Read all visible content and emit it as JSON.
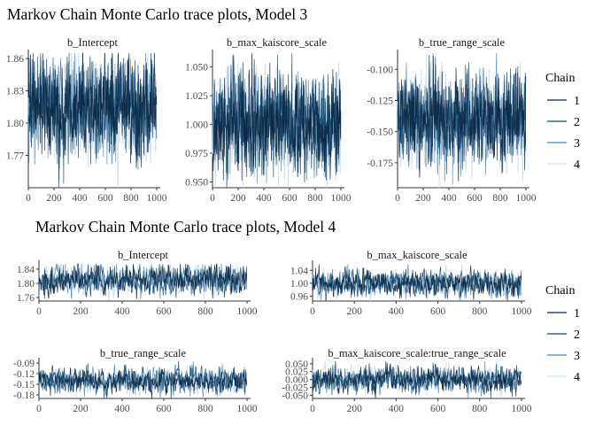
{
  "figures": [
    {
      "title": "Markov Chain Monte Carlo trace plots, Model 3",
      "legend": {
        "title": "Chain",
        "entries": [
          "1",
          "2",
          "3",
          "4"
        ],
        "colors": [
          "#0b2540",
          "#0f4a72",
          "#4f86b4",
          "#cfe0ee"
        ],
        "position": "right"
      }
    },
    {
      "title": "Markov Chain Monte Carlo trace plots, Model 4",
      "legend": {
        "title": "Chain",
        "entries": [
          "1",
          "2",
          "3",
          "4"
        ],
        "colors": [
          "#0b2540",
          "#0f4a72",
          "#4f86b4",
          "#cfe0ee"
        ],
        "position": "right"
      }
    }
  ],
  "chart_data": [
    {
      "type": "line",
      "figure": 0,
      "panel": "b_Intercept",
      "x_range": [
        1,
        1000
      ],
      "xlim": [
        0,
        1000
      ],
      "ylim": [
        1.74,
        1.865
      ],
      "xticks": [
        0,
        200,
        400,
        600,
        800,
        1000
      ],
      "yticks": [
        1.77,
        1.8,
        1.83,
        1.86
      ],
      "ytick_labels": [
        "1.77",
        "1.80",
        "1.83",
        "1.86"
      ],
      "center": 1.815,
      "spread": 0.022,
      "series": [
        {
          "name": "1"
        },
        {
          "name": "2"
        },
        {
          "name": "3"
        },
        {
          "name": "4"
        }
      ]
    },
    {
      "type": "line",
      "figure": 0,
      "panel": "b_max_kaiscore_scale",
      "x_range": [
        1,
        1000
      ],
      "xlim": [
        0,
        1000
      ],
      "ylim": [
        0.945,
        1.062
      ],
      "xticks": [
        0,
        200,
        400,
        600,
        800,
        1000
      ],
      "yticks": [
        0.95,
        0.975,
        1.0,
        1.025,
        1.05
      ],
      "ytick_labels": [
        "0.950",
        "0.975",
        "1.000",
        "1.025",
        "1.050"
      ],
      "center": 1.0,
      "spread": 0.02,
      "series": [
        {
          "name": "1"
        },
        {
          "name": "2"
        },
        {
          "name": "3"
        },
        {
          "name": "4"
        }
      ]
    },
    {
      "type": "line",
      "figure": 0,
      "panel": "b_true_range_scale",
      "x_range": [
        1,
        1000
      ],
      "xlim": [
        0,
        1000
      ],
      "ylim": [
        -0.195,
        -0.087
      ],
      "xticks": [
        0,
        200,
        400,
        600,
        800,
        1000
      ],
      "yticks": [
        -0.175,
        -0.15,
        -0.125,
        -0.1
      ],
      "ytick_labels": [
        "-0.175",
        "-0.150",
        "-0.125",
        "-0.100"
      ],
      "center": -0.14,
      "spread": 0.018,
      "series": [
        {
          "name": "1"
        },
        {
          "name": "2"
        },
        {
          "name": "3"
        },
        {
          "name": "4"
        }
      ]
    },
    {
      "type": "line",
      "figure": 1,
      "panel": "b_Intercept",
      "x_range": [
        1,
        1000
      ],
      "xlim": [
        0,
        1000
      ],
      "ylim": [
        1.75,
        1.855
      ],
      "xticks": [
        0,
        200,
        400,
        600,
        800,
        1000
      ],
      "yticks": [
        1.76,
        1.8,
        1.84
      ],
      "ytick_labels": [
        "1.76",
        "1.80",
        "1.84"
      ],
      "center": 1.81,
      "spread": 0.02,
      "series": [
        {
          "name": "1"
        },
        {
          "name": "2"
        },
        {
          "name": "3"
        },
        {
          "name": "4"
        }
      ]
    },
    {
      "type": "line",
      "figure": 1,
      "panel": "b_max_kaiscore_scale",
      "x_range": [
        1,
        1000
      ],
      "xlim": [
        0,
        1000
      ],
      "ylim": [
        0.945,
        1.06
      ],
      "xticks": [
        0,
        200,
        400,
        600,
        800,
        1000
      ],
      "yticks": [
        0.96,
        1.0,
        1.04
      ],
      "ytick_labels": [
        "0.96",
        "1.00",
        "1.04"
      ],
      "center": 1.0,
      "spread": 0.02,
      "series": [
        {
          "name": "1"
        },
        {
          "name": "2"
        },
        {
          "name": "3"
        },
        {
          "name": "4"
        }
      ]
    },
    {
      "type": "line",
      "figure": 1,
      "panel": "b_true_range_scale",
      "x_range": [
        1,
        1000
      ],
      "xlim": [
        0,
        1000
      ],
      "ylim": [
        -0.19,
        -0.085
      ],
      "xticks": [
        0,
        200,
        400,
        600,
        800,
        1000
      ],
      "yticks": [
        -0.18,
        -0.15,
        -0.12,
        -0.09
      ],
      "ytick_labels": [
        "-0.18",
        "-0.15",
        "-0.12",
        "-0.09"
      ],
      "center": -0.14,
      "spread": 0.017,
      "series": [
        {
          "name": "1"
        },
        {
          "name": "2"
        },
        {
          "name": "3"
        },
        {
          "name": "4"
        }
      ]
    },
    {
      "type": "line",
      "figure": 1,
      "panel": "b_max_kaiscore_scale:true_range_scale",
      "x_range": [
        1,
        1000
      ],
      "xlim": [
        0,
        1000
      ],
      "ylim": [
        -0.06,
        0.058
      ],
      "xticks": [
        0,
        200,
        400,
        600,
        800,
        1000
      ],
      "yticks": [
        -0.05,
        -0.025,
        0.0,
        0.025,
        0.05
      ],
      "ytick_labels": [
        "-0.050",
        "-0.025",
        "0.000",
        "0.025",
        "0.050"
      ],
      "center": 0.0,
      "spread": 0.02,
      "series": [
        {
          "name": "1"
        },
        {
          "name": "2"
        },
        {
          "name": "3"
        },
        {
          "name": "4"
        }
      ]
    }
  ]
}
